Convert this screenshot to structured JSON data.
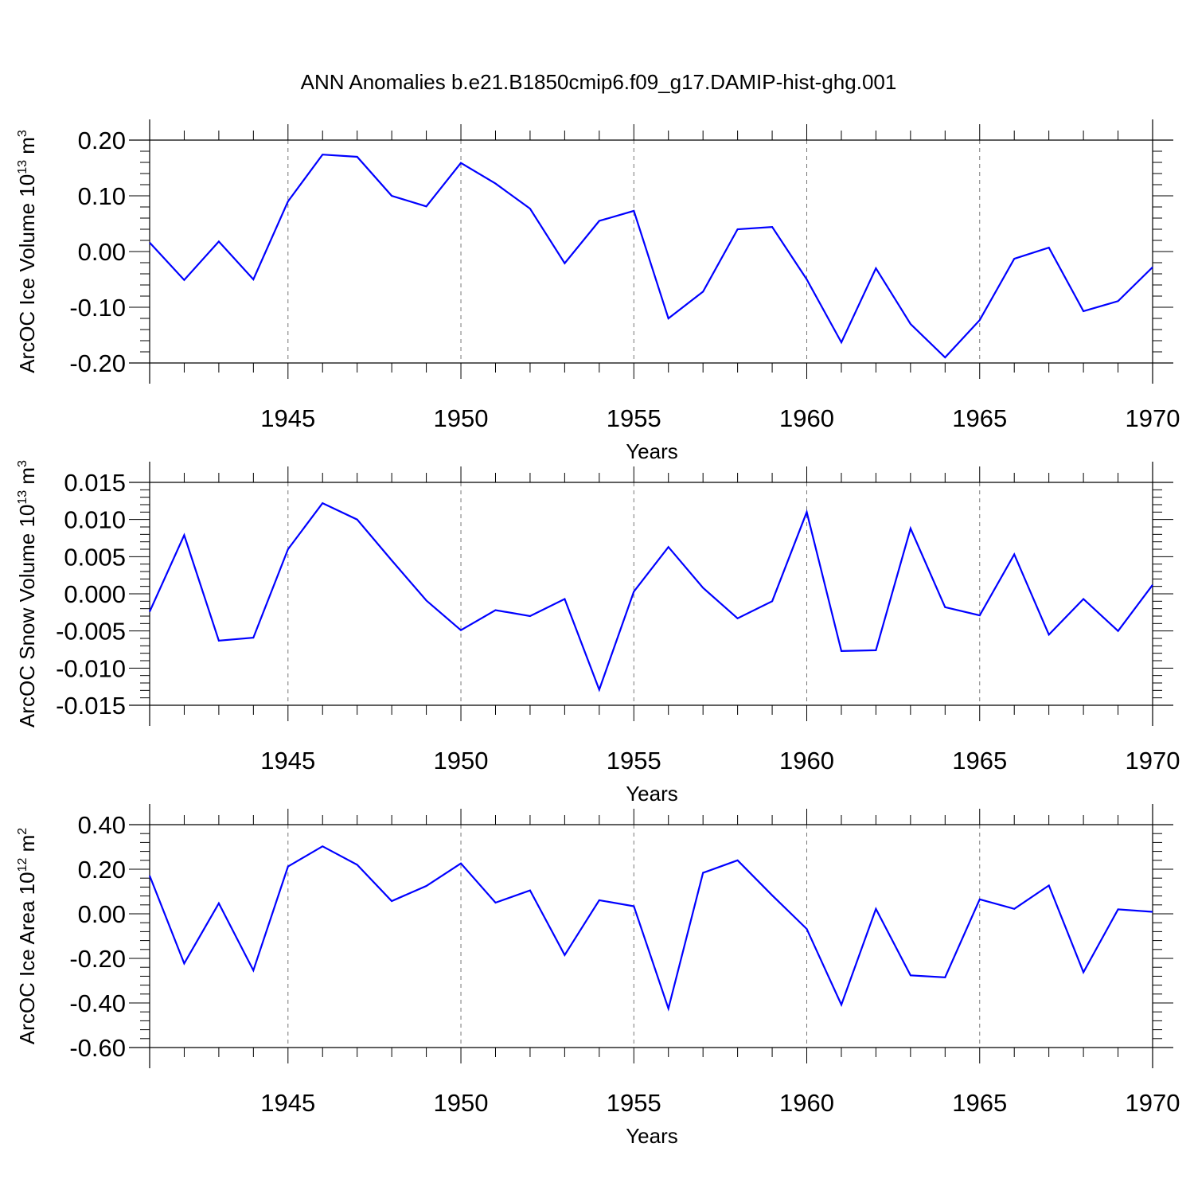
{
  "title": "ANN Anomalies b.e21.B1850cmip6.f09_g17.DAMIP-hist-ghg.001",
  "line_color": "#0000ff",
  "chart_data": [
    {
      "type": "line",
      "title": "ANN Anomalies b.e21.B1850cmip6.f09_g17.DAMIP-hist-ghg.001",
      "xlabel": "Years",
      "ylabel": "ArcOC Ice Volume 10",
      "ylabel_exp": "13",
      "ylabel_unit": " m",
      "ylabel_unit_exp": "3",
      "xlim": [
        1941,
        1970
      ],
      "ylim": [
        -0.2,
        0.2
      ],
      "yticks": [
        -0.2,
        -0.1,
        0.0,
        0.1,
        0.2
      ],
      "ytick_labels": [
        "-0.20",
        "-0.10",
        "0.00",
        "0.10",
        "0.20"
      ],
      "xticks": [
        1945,
        1950,
        1955,
        1960,
        1965,
        1970
      ],
      "xtick_labels": [
        "1945",
        "1950",
        "1955",
        "1960",
        "1965",
        "1970"
      ],
      "x": [
        1941,
        1942,
        1943,
        1944,
        1945,
        1946,
        1947,
        1948,
        1949,
        1950,
        1951,
        1952,
        1953,
        1954,
        1955,
        1956,
        1957,
        1958,
        1959,
        1960,
        1961,
        1962,
        1963,
        1964,
        1965,
        1966,
        1967,
        1968,
        1969,
        1970
      ],
      "values": [
        0.016,
        -0.051,
        0.018,
        -0.05,
        0.09,
        0.174,
        0.17,
        0.1,
        0.081,
        0.159,
        0.122,
        0.077,
        -0.021,
        0.055,
        0.073,
        -0.12,
        -0.072,
        0.04,
        0.044,
        -0.05,
        -0.163,
        -0.03,
        -0.13,
        -0.19,
        -0.123,
        -0.013,
        0.007,
        -0.107,
        -0.089,
        -0.028
      ]
    },
    {
      "type": "line",
      "xlabel": "Years",
      "ylabel": "ArcOC Snow Volume 10",
      "ylabel_exp": "13",
      "ylabel_unit": " m",
      "ylabel_unit_exp": "3",
      "xlim": [
        1941,
        1970
      ],
      "ylim": [
        -0.015,
        0.015
      ],
      "yticks": [
        -0.015,
        -0.01,
        -0.005,
        0.0,
        0.005,
        0.01,
        0.015
      ],
      "ytick_labels": [
        "-0.015",
        "-0.010",
        "-0.005",
        "0.000",
        "0.005",
        "0.010",
        "0.015"
      ],
      "xticks": [
        1945,
        1950,
        1955,
        1960,
        1965,
        1970
      ],
      "xtick_labels": [
        "1945",
        "1950",
        "1955",
        "1960",
        "1965",
        "1970"
      ],
      "x": [
        1941,
        1942,
        1943,
        1944,
        1945,
        1946,
        1947,
        1948,
        1949,
        1950,
        1951,
        1952,
        1953,
        1954,
        1955,
        1956,
        1957,
        1958,
        1959,
        1960,
        1961,
        1962,
        1963,
        1964,
        1965,
        1966,
        1967,
        1968,
        1969,
        1970
      ],
      "values": [
        -0.0024,
        0.0079,
        -0.0063,
        -0.0059,
        0.006,
        0.0122,
        0.01,
        0.0045,
        -0.0009,
        -0.0049,
        -0.0022,
        -0.003,
        -0.0007,
        -0.0129,
        0.0003,
        0.0063,
        0.0008,
        -0.0033,
        -0.001,
        0.011,
        -0.0077,
        -0.0076,
        0.0088,
        -0.0018,
        -0.0029,
        0.0053,
        -0.0055,
        -0.0007,
        -0.005,
        0.0012
      ]
    },
    {
      "type": "line",
      "xlabel": "Years",
      "ylabel": "ArcOC Ice Area 10",
      "ylabel_exp": "12",
      "ylabel_unit": " m",
      "ylabel_unit_exp": "2",
      "xlim": [
        1941,
        1970
      ],
      "ylim": [
        -0.6,
        0.4
      ],
      "yticks": [
        -0.6,
        -0.4,
        -0.2,
        0.0,
        0.2,
        0.4
      ],
      "ytick_labels": [
        "-0.60",
        "-0.40",
        "-0.20",
        "0.00",
        "0.20",
        "0.40"
      ],
      "xticks": [
        1945,
        1950,
        1955,
        1960,
        1965,
        1970
      ],
      "xtick_labels": [
        "1945",
        "1950",
        "1955",
        "1960",
        "1965",
        "1970"
      ],
      "x": [
        1941,
        1942,
        1943,
        1944,
        1945,
        1946,
        1947,
        1948,
        1949,
        1950,
        1951,
        1952,
        1953,
        1954,
        1955,
        1956,
        1957,
        1958,
        1959,
        1960,
        1961,
        1962,
        1963,
        1964,
        1965,
        1966,
        1967,
        1968,
        1969,
        1970
      ],
      "values": [
        0.171,
        -0.223,
        0.047,
        -0.254,
        0.212,
        0.303,
        0.22,
        0.057,
        0.125,
        0.226,
        0.05,
        0.105,
        -0.185,
        0.061,
        0.034,
        -0.425,
        0.184,
        0.24,
        0.083,
        -0.068,
        -0.408,
        0.022,
        -0.276,
        -0.285,
        0.065,
        0.022,
        0.127,
        -0.262,
        0.02,
        0.009
      ]
    }
  ]
}
